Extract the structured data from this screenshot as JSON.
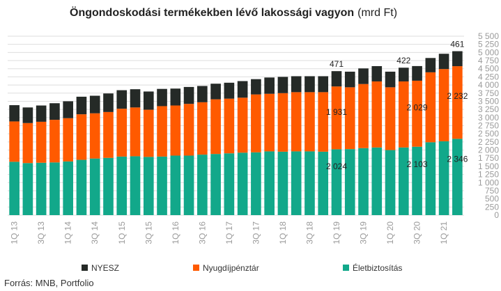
{
  "title_main": "Öngondoskodási termékekben lévő lakossági vagyon",
  "title_unit": "(mrd Ft)",
  "source": "Forrás: MNB, Portfolio",
  "chart_data": {
    "type": "bar",
    "stacked": true,
    "title": "Öngondoskodási termékekben lévő lakossági vagyon (mrd Ft)",
    "categories": [
      "1Q 13",
      "2Q 13",
      "3Q 13",
      "4Q 13",
      "1Q 14",
      "2Q 14",
      "3Q 14",
      "4Q 14",
      "1Q 15",
      "2Q 15",
      "3Q 15",
      "4Q 15",
      "1Q 16",
      "2Q 16",
      "3Q 16",
      "4Q 16",
      "1Q 17",
      "2Q 17",
      "3Q 17",
      "4Q 17",
      "1Q 18",
      "2Q 18",
      "3Q 18",
      "4Q 18",
      "1Q 19",
      "2Q 19",
      "3Q 19",
      "4Q 19",
      "1Q 20",
      "2Q 20",
      "3Q 20",
      "4Q 20",
      "1Q 21",
      "2Q 21"
    ],
    "x_tick_labels": [
      "1Q 13",
      "",
      "3Q 13",
      "",
      "1Q 14",
      "",
      "3Q 14",
      "",
      "1Q 15",
      "",
      "3Q 15",
      "",
      "1Q 16",
      "",
      "3Q 16",
      "",
      "1Q 17",
      "",
      "3Q 17",
      "",
      "1Q 18",
      "",
      "3Q 18",
      "",
      "1Q 19",
      "",
      "3Q 19",
      "",
      "1Q 20",
      "",
      "3Q 20",
      "",
      "1Q 21",
      ""
    ],
    "series": [
      {
        "name": "Életbiztosítás",
        "color": "#12a88a",
        "values": [
          1640,
          1600,
          1610,
          1620,
          1650,
          1700,
          1740,
          1760,
          1800,
          1810,
          1790,
          1800,
          1830,
          1830,
          1860,
          1880,
          1900,
          1920,
          1930,
          1960,
          1950,
          1960,
          1960,
          1950,
          2024,
          2030,
          2060,
          2080,
          2000,
          2080,
          2103,
          2240,
          2270,
          2346
        ]
      },
      {
        "name": "Nyugdíjpénztár",
        "color": "#ff5a00",
        "values": [
          1240,
          1230,
          1260,
          1310,
          1330,
          1400,
          1390,
          1410,
          1470,
          1500,
          1450,
          1550,
          1540,
          1590,
          1610,
          1680,
          1680,
          1690,
          1780,
          1770,
          1800,
          1820,
          1820,
          1830,
          1931,
          1900,
          1970,
          2030,
          1930,
          2030,
          2029,
          2150,
          2220,
          2232
        ]
      },
      {
        "name": "NYESZ",
        "color": "#252a27",
        "values": [
          500,
          480,
          500,
          510,
          520,
          540,
          540,
          570,
          570,
          560,
          560,
          530,
          520,
          520,
          500,
          480,
          490,
          510,
          470,
          500,
          500,
          490,
          490,
          490,
          471,
          480,
          480,
          470,
          480,
          422,
          450,
          440,
          470,
          461
        ]
      }
    ],
    "stack_labels": [
      {
        "category": "1Q 19",
        "series": "Életbiztosítás",
        "text": "2 024"
      },
      {
        "category": "1Q 19",
        "series": "Nyugdíjpénztár",
        "text": "1 931"
      },
      {
        "category": "1Q 19",
        "series": "NYESZ",
        "text": "471"
      },
      {
        "category": "3Q 20",
        "series": "Életbiztosítás",
        "text": "2 103"
      },
      {
        "category": "3Q 20",
        "series": "Nyugdíjpénztár",
        "text": "2 029"
      },
      {
        "category": "2Q 20",
        "series": "NYESZ",
        "text": "422"
      },
      {
        "category": "2Q 21",
        "series": "Életbiztosítás",
        "text": "2 346"
      },
      {
        "category": "2Q 21",
        "series": "Nyugdíjpénztár",
        "text": "2 232"
      },
      {
        "category": "2Q 21",
        "series": "NYESZ",
        "text": "461"
      }
    ],
    "y_ticks": [
      "0",
      "250",
      "500",
      "750",
      "1 000",
      "1 250",
      "1 500",
      "1 750",
      "2 000",
      "2 250",
      "2 500",
      "2 750",
      "3 000",
      "3 250",
      "3 500",
      "3 750",
      "4 000",
      "4 250",
      "4 500",
      "4 750",
      "5 000",
      "5 250",
      "5 500"
    ],
    "ylim": [
      0,
      5500
    ],
    "y_axis_side": "right",
    "grid": true,
    "legend": [
      "NYESZ",
      "Nyugdíjpénztár",
      "Életbiztosítás"
    ],
    "legend_placement": "bottom"
  }
}
